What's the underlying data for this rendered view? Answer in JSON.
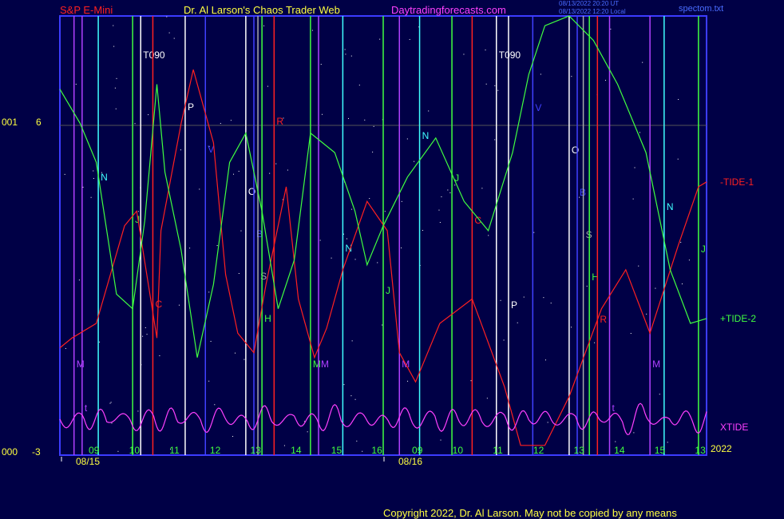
{
  "header": {
    "symbol": "S&P E-Mini",
    "site": "Dr. Al Larson's Chaos Trader Web",
    "url": "Daytradingforecasts.com",
    "stamp1": "08/13/2022 20:20 UT",
    "stamp2": "08/13/2022 12:20 Local",
    "file": "spectom.txt"
  },
  "footer": {
    "copyright": "Copyright 2022, Dr. Al Larson. May not be copied by any means"
  },
  "colors": {
    "background": "#000046",
    "tide1": "#ff2020",
    "tide2": "#40ff40",
    "xtide": "#ff40ff",
    "axis": "#3c3cff",
    "text": "#ffff40"
  },
  "chart_data": {
    "type": "line",
    "yaxis": {
      "top_label": "6",
      "bottom_label": "-3",
      "left_top": "001",
      "left_bottom": "000",
      "ylim": [
        -3,
        6
      ]
    },
    "xaxis": {
      "hour_ticks": [
        "09",
        "10",
        "11",
        "12",
        "13",
        "14",
        "15",
        "16",
        "09",
        "10",
        "11",
        "12",
        "13",
        "14",
        "15",
        "13"
      ],
      "date_labels": [
        "08/15",
        "08/16"
      ],
      "year": "2022",
      "xlim": [
        0,
        16
      ]
    },
    "series": [
      {
        "name": "-TIDE-1",
        "color": "#ff2020",
        "x": [
          0,
          0.3,
          0.9,
          1.6,
          1.9,
          2.4,
          2.5,
          3.0,
          3.3,
          3.8,
          4.1,
          4.4,
          4.8,
          5.1,
          5.6,
          5.9,
          6.3,
          6.6,
          7.0,
          7.6,
          8.1,
          8.4,
          8.8,
          9.4,
          10.2,
          11.0,
          11.4,
          12.0,
          12.6,
          13.4,
          14.0,
          14.6,
          15.3,
          15.8,
          16.0
        ],
        "y": [
          -0.8,
          -0.6,
          -0.3,
          1.7,
          2.0,
          -0.6,
          1.6,
          3.8,
          4.9,
          3.4,
          0.7,
          -0.5,
          -0.9,
          0.5,
          2.5,
          0.2,
          -1.0,
          -0.4,
          0.8,
          2.2,
          1.6,
          -0.9,
          -1.5,
          -0.3,
          0.2,
          -1.6,
          -2.8,
          -2.8,
          -1.8,
          0.0,
          0.8,
          -0.5,
          1.3,
          2.5,
          2.6
        ]
      },
      {
        "name": "+TIDE-2",
        "color": "#40ff40",
        "x": [
          0,
          0.5,
          0.9,
          1.4,
          1.8,
          2.1,
          2.4,
          2.6,
          3.0,
          3.4,
          3.8,
          4.2,
          4.6,
          5.0,
          5.4,
          5.8,
          6.2,
          6.8,
          7.3,
          7.6,
          8.0,
          8.6,
          9.3,
          10.0,
          10.6,
          11.2,
          11.6,
          12.0,
          12.6,
          13.2,
          13.8,
          14.5,
          15.1,
          15.6,
          16.0
        ],
        "y": [
          4.5,
          3.8,
          3.0,
          0.3,
          0.0,
          1.8,
          4.6,
          2.8,
          1.2,
          -1.0,
          0.5,
          3.0,
          3.6,
          2.0,
          0.0,
          1.0,
          3.6,
          3.2,
          2.0,
          0.9,
          1.7,
          2.7,
          3.5,
          2.2,
          1.6,
          3.2,
          4.8,
          5.8,
          6.0,
          5.5,
          4.6,
          3.2,
          0.8,
          -0.3,
          -0.2
        ]
      },
      {
        "name": "XTIDE",
        "color": "#ff40ff",
        "period": 0.58,
        "values": [
          0.4,
          0.9,
          0.2,
          0.6,
          1.0,
          0.3,
          0.7,
          0.5,
          0.8,
          0.2,
          0.6,
          0.9,
          0.3,
          0.5,
          0.7,
          0.4,
          0.9,
          0.6,
          0.3,
          0.8,
          0.5,
          0.2,
          0.7,
          0.4,
          0.9,
          0.3,
          0.6,
          0.8
        ]
      }
    ],
    "vlines": [
      {
        "x": 0.35,
        "color": "#b040ff",
        "label": "M"
      },
      {
        "x": 0.55,
        "color": "#b040ff",
        "label": "t"
      },
      {
        "x": 0.95,
        "color": "#40ffff",
        "label": "N"
      },
      {
        "x": 1.8,
        "color": "#40ff40",
        "label": "J"
      },
      {
        "x": 2.0,
        "color": "#ffffff",
        "label": "T090"
      },
      {
        "x": 2.3,
        "color": "#ff2020",
        "label": "C"
      },
      {
        "x": 3.1,
        "color": "#ffffff",
        "label": "P"
      },
      {
        "x": 3.6,
        "color": "#4040ff",
        "label": "V"
      },
      {
        "x": 4.6,
        "color": "#ffffff",
        "label": "O"
      },
      {
        "x": 4.8,
        "color": "#4040ff",
        "label": "B"
      },
      {
        "x": 4.9,
        "color": "#aaaaaa",
        "label": "S"
      },
      {
        "x": 5.0,
        "color": "#40ff40",
        "label": "H"
      },
      {
        "x": 5.3,
        "color": "#ff2020",
        "label": "R"
      },
      {
        "x": 6.2,
        "color": "#40ff40",
        "label": "M"
      },
      {
        "x": 6.4,
        "color": "#b040ff",
        "label": "M"
      },
      {
        "x": 7.0,
        "color": "#40ffff",
        "label": "N"
      },
      {
        "x": 8.0,
        "color": "#40ff40",
        "label": "J"
      },
      {
        "x": 8.4,
        "color": "#b040ff",
        "label": "M"
      },
      {
        "x": 8.9,
        "color": "#40ffff",
        "label": "N"
      },
      {
        "x": 9.7,
        "color": "#40ff40",
        "label": "J"
      },
      {
        "x": 10.2,
        "color": "#ff2020",
        "label": "C"
      },
      {
        "x": 10.8,
        "color": "#ffffff",
        "label": "T090"
      },
      {
        "x": 11.1,
        "color": "#ffffff",
        "label": "P"
      },
      {
        "x": 11.7,
        "color": "#4040ff",
        "label": "V"
      },
      {
        "x": 12.6,
        "color": "#ffffff",
        "label": "O"
      },
      {
        "x": 12.8,
        "color": "#4040ff",
        "label": "B"
      },
      {
        "x": 12.95,
        "color": "#aaaaaa",
        "label": "S"
      },
      {
        "x": 13.1,
        "color": "#40ff40",
        "label": "H"
      },
      {
        "x": 13.3,
        "color": "#ff2020",
        "label": "R"
      },
      {
        "x": 13.6,
        "color": "#b040ff",
        "label": "t"
      },
      {
        "x": 14.6,
        "color": "#b040ff",
        "label": "M"
      },
      {
        "x": 14.95,
        "color": "#40ffff",
        "label": "N"
      },
      {
        "x": 15.8,
        "color": "#40ff40",
        "label": "J"
      }
    ]
  }
}
